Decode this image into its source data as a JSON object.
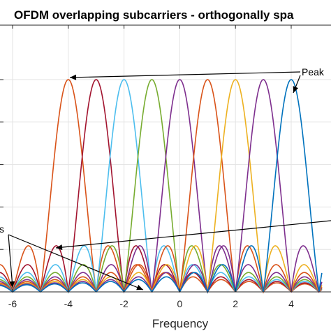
{
  "chart_data": {
    "type": "line",
    "title": "OFDM overlapping subcarriers - orthogonally spa",
    "xlabel": "Frequency",
    "ylabel": "",
    "xlim": [
      -6.5,
      5.1
    ],
    "ylim": [
      0,
      1.1
    ],
    "x_ticks": [
      -6,
      -4,
      -2,
      0,
      2,
      4
    ],
    "x_tick_labels": [
      "-6",
      "-4",
      "-2",
      "0",
      "2",
      "4"
    ],
    "y_gridlines": [
      0.2,
      0.4,
      0.6,
      0.8,
      1.0
    ],
    "grid": true,
    "series": [
      {
        "center": -4,
        "color": "#D95319"
      },
      {
        "center": -3,
        "color": "#A2142F"
      },
      {
        "center": -2,
        "color": "#4DBEEE"
      },
      {
        "center": -1,
        "color": "#77AC30"
      },
      {
        "center": 0,
        "color": "#7E2F8E"
      },
      {
        "center": 1,
        "color": "#D95319"
      },
      {
        "center": 2,
        "color": "#EDB120"
      },
      {
        "center": 3,
        "color": "#7E2F8E"
      },
      {
        "center": 4,
        "color": "#0072BD"
      }
    ],
    "curve_function": "|sinc(f - center)|",
    "annotations": [
      {
        "text": "Peak",
        "x": 4.4,
        "y": 1.06
      },
      {
        "text": "s",
        "x": -6.5,
        "y": 0.3
      }
    ]
  }
}
